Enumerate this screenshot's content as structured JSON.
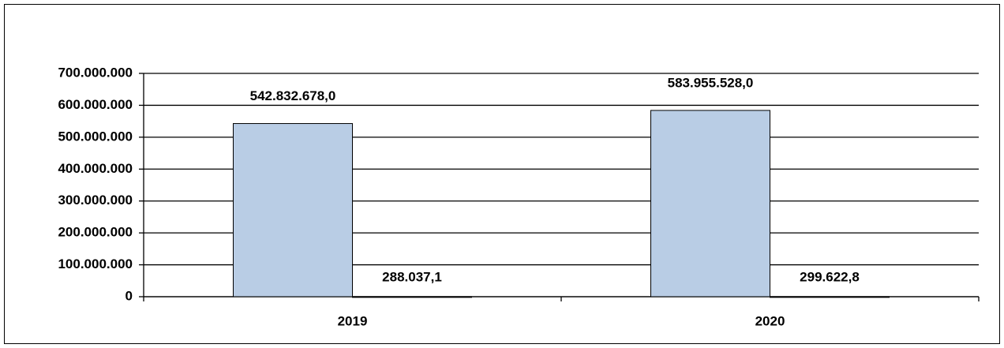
{
  "chart_data": {
    "type": "bar",
    "categories": [
      "2019",
      "2020"
    ],
    "series": [
      {
        "color": "#b9cde5",
        "values": [
          542832678.0,
          583955528.0
        ],
        "value_labels": [
          "542.832.678,0",
          "583.955.528,0"
        ]
      },
      {
        "color": "#1f1f5f",
        "values": [
          288037.1,
          299622.8
        ],
        "value_labels": [
          "288.037,1",
          "299.622,8"
        ]
      }
    ],
    "ylim": [
      0,
      700000000
    ],
    "yticks": [
      0,
      {
        "value": 100000000,
        "label": "100.000.000"
      },
      {
        "value": 200000000,
        "label": "200.000.000"
      },
      {
        "value": 300000000,
        "label": "300.000.000"
      },
      {
        "value": 400000000,
        "label": "400.000.000"
      },
      {
        "value": 500000000,
        "label": "500.000.000"
      },
      {
        "value": 600000000,
        "label": "600.000.000"
      },
      {
        "value": 700000000,
        "label": "700.000.000"
      }
    ],
    "grid": true
  }
}
